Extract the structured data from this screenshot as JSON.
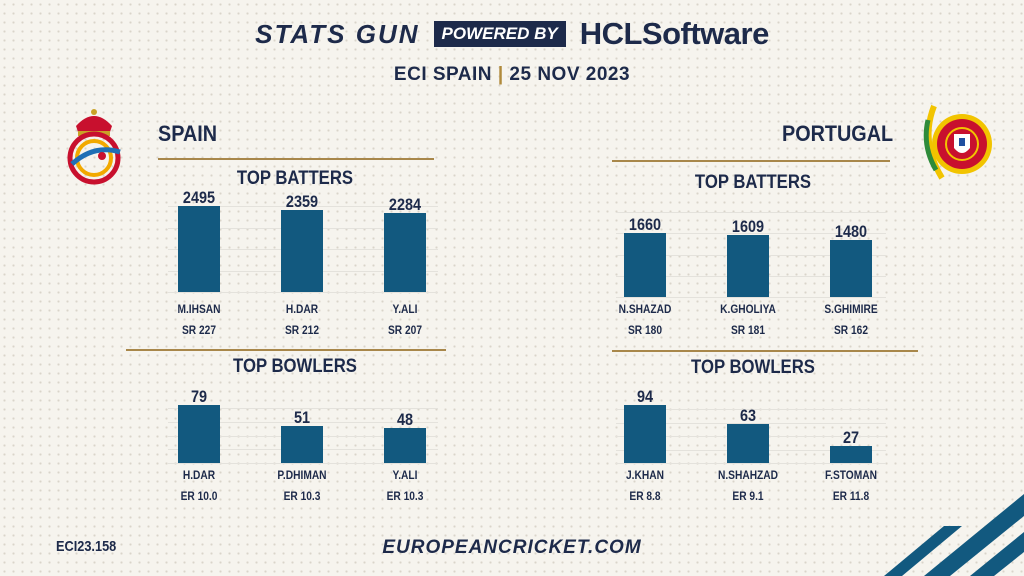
{
  "header": {
    "brand": "STATS GUN",
    "powered_by": "POWERED BY",
    "sponsor": "HCLSoftware",
    "subtitle_event": "ECI SPAIN",
    "subtitle_separator": "|",
    "subtitle_date": "25 NOV 2023"
  },
  "teams": {
    "left": {
      "name": "SPAIN"
    },
    "right": {
      "name": "PORTUGAL"
    }
  },
  "footer": {
    "id": "ECI23.158",
    "url": "EUROPEANCRICKET.COM"
  },
  "colors": {
    "bar": "#12597f",
    "navy": "#1d2a4a",
    "gold_rule": "#a8874a",
    "stripes": "#12597f"
  },
  "chart_data": [
    {
      "type": "bar",
      "title": "TOP BATTERS",
      "team": "SPAIN",
      "categories": [
        "M.IHSAN",
        "H.DAR",
        "Y.ALI"
      ],
      "values": [
        2495,
        2359,
        2284
      ],
      "stat_labels": [
        "SR 227",
        "SR 212",
        "SR 207"
      ],
      "ylim": [
        0,
        2600
      ]
    },
    {
      "type": "bar",
      "title": "TOP BOWLERS",
      "team": "SPAIN",
      "categories": [
        "H.DAR",
        "P.DHIMAN",
        "Y.ALI"
      ],
      "values": [
        79,
        51,
        48
      ],
      "stat_labels": [
        "ER 10.0",
        "ER 10.3",
        "ER 10.3"
      ],
      "ylim": [
        0,
        82
      ]
    },
    {
      "type": "bar",
      "title": "TOP BATTERS",
      "team": "PORTUGAL",
      "categories": [
        "N.SHAZAD",
        "K.GHOLIYA",
        "S.GHIMIRE"
      ],
      "values": [
        1660,
        1609,
        1480
      ],
      "stat_labels": [
        "SR 180",
        "SR 181",
        "SR 162"
      ],
      "ylim": [
        0,
        1760
      ]
    },
    {
      "type": "bar",
      "title": "TOP BOWLERS",
      "team": "PORTUGAL",
      "categories": [
        "J.KHAN",
        "N.SHAHZAD",
        "F.STOMAN"
      ],
      "values": [
        94,
        63,
        27
      ],
      "stat_labels": [
        "ER 8.8",
        "ER 9.1",
        "ER 11.8"
      ],
      "ylim": [
        0,
        98
      ]
    }
  ]
}
